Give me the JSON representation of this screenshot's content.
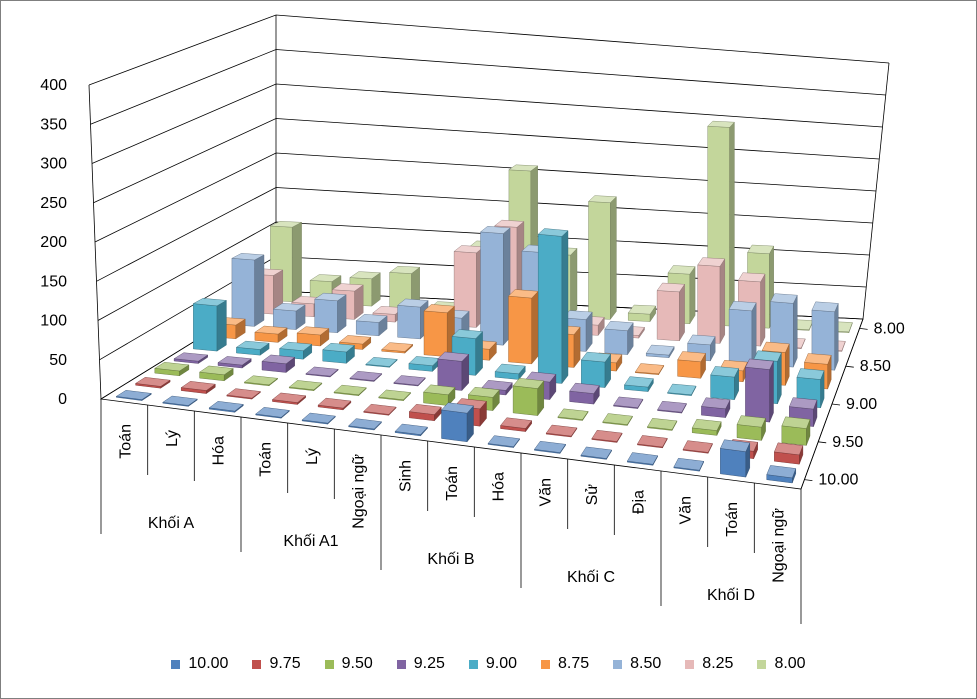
{
  "chart_data": {
    "type": "bar",
    "subtype": "3d-column",
    "grid": true,
    "legend_position": "bottom",
    "ylim": [
      0,
      400
    ],
    "yticks": [
      "0",
      "50",
      "100",
      "150",
      "200",
      "250",
      "300",
      "350",
      "400"
    ],
    "groups": [
      {
        "label": "Khối A",
        "subjects": [
          "Toán",
          "Lý",
          "Hóa"
        ]
      },
      {
        "label": "Khối A1",
        "subjects": [
          "Toán",
          "Lý",
          "Ngoại ngữ"
        ]
      },
      {
        "label": "Khối B",
        "subjects": [
          "Sinh",
          "Toán",
          "Hóa"
        ]
      },
      {
        "label": "Khối C",
        "subjects": [
          "Văn",
          "Sử",
          "Địa"
        ]
      },
      {
        "label": "Khối D",
        "subjects": [
          "Văn",
          "Toán",
          "Ngoại ngữ"
        ]
      }
    ],
    "categories": [
      "Toán",
      "Lý",
      "Hóa",
      "Toán",
      "Lý",
      "Ngoại ngữ",
      "Sinh",
      "Toán",
      "Hóa",
      "Văn",
      "Sử",
      "Địa",
      "Văn",
      "Toán",
      "Ngoại ngữ"
    ],
    "depth_labels": [
      "10.00",
      "9.50",
      "9.00",
      "8.50",
      "8.00"
    ],
    "series": [
      {
        "name": "10.00",
        "color": "#4f81bd",
        "values": [
          0,
          0,
          2,
          0,
          0,
          0,
          2,
          45,
          0,
          0,
          0,
          0,
          0,
          40,
          8
        ]
      },
      {
        "name": "9.75",
        "color": "#c0504d",
        "values": [
          3,
          5,
          0,
          3,
          3,
          0,
          10,
          28,
          5,
          0,
          0,
          0,
          0,
          12,
          15
        ]
      },
      {
        "name": "9.50",
        "color": "#9bbb59",
        "values": [
          8,
          10,
          0,
          0,
          0,
          0,
          18,
          22,
          45,
          0,
          0,
          0,
          8,
          22,
          28
        ]
      },
      {
        "name": "9.25",
        "color": "#8064a2",
        "values": [
          4,
          5,
          15,
          0,
          0,
          0,
          50,
          8,
          30,
          18,
          0,
          0,
          15,
          90,
          30
        ]
      },
      {
        "name": "9.00",
        "color": "#4bacc6",
        "values": [
          80,
          10,
          15,
          20,
          0,
          10,
          65,
          10,
          260,
          45,
          8,
          0,
          40,
          75,
          50
        ]
      },
      {
        "name": "8.75",
        "color": "#f79646",
        "values": [
          25,
          15,
          20,
          10,
          3,
          80,
          20,
          120,
          60,
          15,
          0,
          30,
          20,
          60,
          45
        ]
      },
      {
        "name": "8.50",
        "color": "#95b3d7",
        "values": [
          125,
          35,
          60,
          25,
          60,
          45,
          210,
          180,
          60,
          45,
          5,
          30,
          100,
          120,
          110
        ]
      },
      {
        "name": "8.25",
        "color": "#e6b9b8",
        "values": [
          75,
          25,
          55,
          15,
          0,
          145,
          200,
          125,
          20,
          5,
          95,
          150,
          125,
          0,
          0
        ]
      },
      {
        "name": "8.00",
        "color": "#c3d69b",
        "values": [
          150,
          45,
          55,
          70,
          0,
          130,
          290,
          125,
          235,
          15,
          100,
          400,
          150,
          0,
          0
        ]
      }
    ]
  }
}
